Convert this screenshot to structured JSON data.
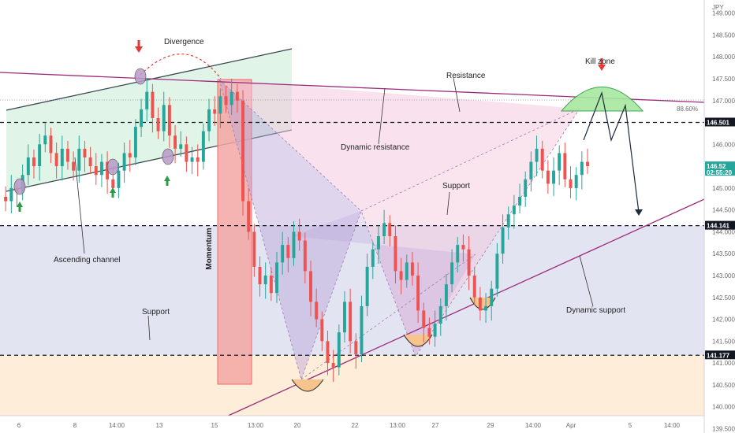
{
  "chart_data": {
    "type": "candlestick",
    "currency_label": "JPY",
    "last_price_label": "146.52",
    "countdown_label": "02:55:20",
    "fib_label": "88.60%",
    "ylim": [
      139.4,
      149.3
    ],
    "y_ticks": [
      139.5,
      140.0,
      140.5,
      141.0,
      141.5,
      142.0,
      142.5,
      143.0,
      143.5,
      144.0,
      144.5,
      145.0,
      145.5,
      146.0,
      146.5,
      147.0,
      147.5,
      148.0,
      148.5,
      149.0
    ],
    "y_tick_labels": [
      "139.500",
      "140.000",
      "140.500",
      "141.000",
      "141.500",
      "142.000",
      "142.500",
      "143.000",
      "143.500",
      "144.000",
      "144.500",
      "145.000",
      "145.500",
      "146.000",
      "146.500",
      "147.000",
      "147.500",
      "148.000",
      "148.500",
      "149.000"
    ],
    "x_tick_labels": [
      "6",
      "8",
      "14:00",
      "13",
      "15",
      "13:00",
      "20",
      "22",
      "13:00",
      "27",
      "29",
      "14:00",
      "Apr",
      "5",
      "14:00"
    ],
    "levels": [
      {
        "value": 146.501,
        "label": "146.501",
        "color": "#131722"
      },
      {
        "value": 144.141,
        "label": "144.141",
        "color": "#131722"
      },
      {
        "value": 141.177,
        "label": "141.177",
        "color": "#131722"
      },
      {
        "value": 145.5,
        "label": "02:55:20",
        "color": "#26a69a"
      }
    ],
    "annotations": [
      "Divergence",
      "Resistance",
      "Kill zone",
      "Dynamic resistance",
      "Support",
      "Ascending channel",
      "Momentum",
      "Support",
      "Dynamic support"
    ],
    "colors": {
      "up": "#26a69a",
      "down": "#ef5350",
      "channel_fill": "#c8ebd5",
      "support_zone": "#d9dbee",
      "lower_zone": "#fde8cf",
      "pattern_pink": "#f3c6dc",
      "pattern_purple": "#b9a3d9",
      "dynamic_line": "#9c2a7a",
      "kill_zone": "#a7e8a0"
    },
    "price_path": [
      144.8,
      144.7,
      145.0,
      144.9,
      145.3,
      145.7,
      145.5,
      146.0,
      146.2,
      145.8,
      145.5,
      145.9,
      145.6,
      145.4,
      145.9,
      145.7,
      145.5,
      145.3,
      145.6,
      145.2,
      145.0,
      145.4,
      145.8,
      145.7,
      146.4,
      146.8,
      147.2,
      146.6,
      146.3,
      146.9,
      146.2,
      145.9,
      146.0,
      145.6,
      145.7,
      145.6,
      146.3,
      146.8,
      146.7,
      147.1,
      146.9,
      147.2,
      147.0,
      144.7,
      144.0,
      143.2,
      142.8,
      143.0,
      142.6,
      143.3,
      143.7,
      143.4,
      144.0,
      143.8,
      143.1,
      142.4,
      142.0,
      141.5,
      141.0,
      140.9,
      141.7,
      142.4,
      141.5,
      141.2,
      142.3,
      143.2,
      143.6,
      143.9,
      144.2,
      143.9,
      143.1,
      142.9,
      143.3,
      143.0,
      142.2,
      141.8,
      141.6,
      141.9,
      142.3,
      142.8,
      143.3,
      143.7,
      143.6,
      143.0,
      142.5,
      142.2,
      142.3,
      142.7,
      143.5,
      144.1,
      144.4,
      144.6,
      144.8,
      145.2,
      145.6,
      145.9,
      145.4,
      145.1,
      145.4,
      145.8,
      145.2,
      145.0,
      145.3,
      145.6,
      145.5
    ],
    "price_path_note_x_range": [
      0,
      745
    ]
  }
}
